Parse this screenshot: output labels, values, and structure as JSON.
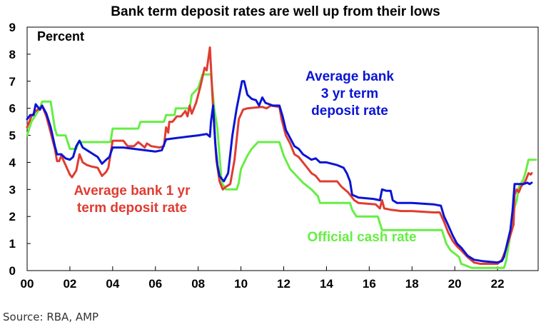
{
  "chart_data": {
    "type": "line",
    "title": "Bank term deposit rates are well up from their lows",
    "unit_label": "Percent",
    "source": "Source: RBA, AMP",
    "xlim": [
      2000,
      2023.9
    ],
    "ylim": [
      0,
      9
    ],
    "x_ticks": [
      {
        "value": 2000,
        "label": "00"
      },
      {
        "value": 2002,
        "label": "02"
      },
      {
        "value": 2004,
        "label": "04"
      },
      {
        "value": 2006,
        "label": "06"
      },
      {
        "value": 2008,
        "label": "08"
      },
      {
        "value": 2010,
        "label": "10"
      },
      {
        "value": 2012,
        "label": "12"
      },
      {
        "value": 2014,
        "label": "14"
      },
      {
        "value": 2016,
        "label": "16"
      },
      {
        "value": 2018,
        "label": "18"
      },
      {
        "value": 2020,
        "label": "20"
      },
      {
        "value": 2022,
        "label": "22"
      }
    ],
    "y_ticks": [
      0,
      1,
      2,
      3,
      4,
      5,
      6,
      7,
      8,
      9
    ],
    "series": [
      {
        "name": "Official cash rate",
        "color": "#66ee44",
        "label_lines": [
          "Official cash rate"
        ],
        "points": [
          [
            2000.0,
            5.0
          ],
          [
            2000.2,
            5.5
          ],
          [
            2000.4,
            5.75
          ],
          [
            2000.6,
            6.0
          ],
          [
            2000.7,
            6.25
          ],
          [
            2001.1,
            6.25
          ],
          [
            2001.2,
            5.75
          ],
          [
            2001.3,
            5.25
          ],
          [
            2001.4,
            5.0
          ],
          [
            2001.8,
            5.0
          ],
          [
            2001.9,
            4.75
          ],
          [
            2002.0,
            4.5
          ],
          [
            2002.3,
            4.5
          ],
          [
            2002.4,
            4.75
          ],
          [
            2003.9,
            4.75
          ],
          [
            2003.95,
            5.0
          ],
          [
            2004.0,
            5.25
          ],
          [
            2005.2,
            5.25
          ],
          [
            2005.3,
            5.5
          ],
          [
            2006.4,
            5.5
          ],
          [
            2006.5,
            5.75
          ],
          [
            2006.9,
            5.75
          ],
          [
            2006.95,
            6.0
          ],
          [
            2007.6,
            6.0
          ],
          [
            2007.7,
            6.5
          ],
          [
            2008.0,
            6.75
          ],
          [
            2008.2,
            7.25
          ],
          [
            2008.6,
            7.25
          ],
          [
            2008.75,
            6.0
          ],
          [
            2008.9,
            5.25
          ],
          [
            2009.0,
            4.25
          ],
          [
            2009.1,
            3.25
          ],
          [
            2009.3,
            3.0
          ],
          [
            2009.8,
            3.0
          ],
          [
            2009.9,
            3.25
          ],
          [
            2010.0,
            3.75
          ],
          [
            2010.3,
            4.25
          ],
          [
            2010.5,
            4.5
          ],
          [
            2010.8,
            4.75
          ],
          [
            2011.8,
            4.75
          ],
          [
            2011.9,
            4.5
          ],
          [
            2012.0,
            4.25
          ],
          [
            2012.3,
            3.75
          ],
          [
            2012.6,
            3.5
          ],
          [
            2012.9,
            3.25
          ],
          [
            2013.3,
            3.0
          ],
          [
            2013.6,
            2.75
          ],
          [
            2013.7,
            2.5
          ],
          [
            2015.1,
            2.5
          ],
          [
            2015.2,
            2.25
          ],
          [
            2015.4,
            2.0
          ],
          [
            2016.4,
            2.0
          ],
          [
            2016.5,
            1.75
          ],
          [
            2016.6,
            1.5
          ],
          [
            2019.4,
            1.5
          ],
          [
            2019.5,
            1.25
          ],
          [
            2019.6,
            1.0
          ],
          [
            2019.8,
            0.75
          ],
          [
            2020.2,
            0.5
          ],
          [
            2020.3,
            0.25
          ],
          [
            2020.8,
            0.1
          ],
          [
            2022.3,
            0.1
          ],
          [
            2022.4,
            0.35
          ],
          [
            2022.5,
            0.85
          ],
          [
            2022.6,
            1.35
          ],
          [
            2022.7,
            1.85
          ],
          [
            2022.8,
            2.35
          ],
          [
            2022.9,
            2.6
          ],
          [
            2023.0,
            3.1
          ],
          [
            2023.2,
            3.35
          ],
          [
            2023.3,
            3.6
          ],
          [
            2023.45,
            4.1
          ],
          [
            2023.8,
            4.1
          ]
        ]
      },
      {
        "name": "Average bank 1 yr term deposit rate",
        "color": "#e03c31",
        "label_lines": [
          "Average bank 1 yr",
          "term deposit rate"
        ],
        "points": [
          [
            2000.0,
            5.3
          ],
          [
            2000.2,
            5.7
          ],
          [
            2000.4,
            5.9
          ],
          [
            2000.6,
            6.0
          ],
          [
            2000.7,
            6.1
          ],
          [
            2000.9,
            5.7
          ],
          [
            2001.1,
            5.1
          ],
          [
            2001.3,
            4.5
          ],
          [
            2001.4,
            4.05
          ],
          [
            2001.5,
            4.05
          ],
          [
            2001.6,
            4.25
          ],
          [
            2001.8,
            3.9
          ],
          [
            2002.0,
            3.55
          ],
          [
            2002.1,
            3.45
          ],
          [
            2002.3,
            3.7
          ],
          [
            2002.45,
            4.3
          ],
          [
            2002.6,
            4.0
          ],
          [
            2002.8,
            3.9
          ],
          [
            2003.0,
            3.85
          ],
          [
            2003.3,
            3.8
          ],
          [
            2003.5,
            3.5
          ],
          [
            2003.7,
            3.65
          ],
          [
            2003.8,
            3.8
          ],
          [
            2004.0,
            4.8
          ],
          [
            2004.5,
            4.8
          ],
          [
            2004.7,
            4.6
          ],
          [
            2005.0,
            4.6
          ],
          [
            2005.2,
            4.75
          ],
          [
            2005.5,
            4.55
          ],
          [
            2005.6,
            4.7
          ],
          [
            2005.8,
            4.6
          ],
          [
            2006.2,
            4.55
          ],
          [
            2006.4,
            4.6
          ],
          [
            2006.5,
            5.3
          ],
          [
            2006.6,
            5.1
          ],
          [
            2006.65,
            5.5
          ],
          [
            2006.8,
            5.5
          ],
          [
            2006.9,
            5.6
          ],
          [
            2007.0,
            5.7
          ],
          [
            2007.2,
            5.7
          ],
          [
            2007.4,
            5.9
          ],
          [
            2007.5,
            5.7
          ],
          [
            2007.6,
            6.1
          ],
          [
            2007.7,
            5.8
          ],
          [
            2007.9,
            6.2
          ],
          [
            2008.1,
            6.8
          ],
          [
            2008.3,
            7.5
          ],
          [
            2008.4,
            7.4
          ],
          [
            2008.55,
            8.25
          ],
          [
            2008.6,
            7.5
          ],
          [
            2008.7,
            6.0
          ],
          [
            2008.85,
            4.1
          ],
          [
            2009.0,
            3.3
          ],
          [
            2009.15,
            3.0
          ],
          [
            2009.3,
            3.1
          ],
          [
            2009.5,
            3.2
          ],
          [
            2009.7,
            4.1
          ],
          [
            2009.9,
            5.6
          ],
          [
            2010.1,
            5.95
          ],
          [
            2010.3,
            6.0
          ],
          [
            2011.0,
            6.05
          ],
          [
            2011.2,
            6.0
          ],
          [
            2011.4,
            6.1
          ],
          [
            2011.8,
            6.05
          ],
          [
            2011.9,
            5.6
          ],
          [
            2012.1,
            5.0
          ],
          [
            2012.3,
            4.7
          ],
          [
            2012.5,
            4.3
          ],
          [
            2012.7,
            4.2
          ],
          [
            2012.9,
            4.0
          ],
          [
            2013.1,
            3.8
          ],
          [
            2013.3,
            3.6
          ],
          [
            2013.5,
            3.5
          ],
          [
            2013.7,
            3.3
          ],
          [
            2014.5,
            3.3
          ],
          [
            2014.7,
            3.1
          ],
          [
            2015.0,
            2.9
          ],
          [
            2015.3,
            2.6
          ],
          [
            2015.5,
            2.5
          ],
          [
            2016.3,
            2.45
          ],
          [
            2016.5,
            2.3
          ],
          [
            2016.6,
            2.6
          ],
          [
            2016.7,
            2.3
          ],
          [
            2017.0,
            2.25
          ],
          [
            2017.5,
            2.2
          ],
          [
            2018.0,
            2.2
          ],
          [
            2019.0,
            2.15
          ],
          [
            2019.3,
            2.15
          ],
          [
            2019.5,
            1.8
          ],
          [
            2019.7,
            1.4
          ],
          [
            2019.9,
            1.1
          ],
          [
            2020.1,
            0.9
          ],
          [
            2020.3,
            0.75
          ],
          [
            2020.6,
            0.5
          ],
          [
            2020.9,
            0.3
          ],
          [
            2021.2,
            0.25
          ],
          [
            2022.0,
            0.25
          ],
          [
            2022.2,
            0.4
          ],
          [
            2022.4,
            0.8
          ],
          [
            2022.6,
            1.3
          ],
          [
            2022.75,
            1.7
          ],
          [
            2022.8,
            2.8
          ],
          [
            2022.9,
            3.0
          ],
          [
            2023.0,
            2.9
          ],
          [
            2023.1,
            3.1
          ],
          [
            2023.3,
            3.3
          ],
          [
            2023.45,
            3.6
          ],
          [
            2023.55,
            3.55
          ],
          [
            2023.6,
            3.6
          ]
        ]
      },
      {
        "name": "Average bank 3 yr term deposit rate",
        "color": "#0a14d4",
        "label_lines": [
          "Average bank",
          "3 yr term",
          "deposit rate"
        ],
        "points": [
          [
            2000.0,
            5.6
          ],
          [
            2000.15,
            5.75
          ],
          [
            2000.3,
            5.75
          ],
          [
            2000.4,
            6.15
          ],
          [
            2000.5,
            6.05
          ],
          [
            2000.6,
            5.95
          ],
          [
            2000.7,
            6.1
          ],
          [
            2000.9,
            5.8
          ],
          [
            2001.1,
            5.3
          ],
          [
            2001.3,
            4.6
          ],
          [
            2001.4,
            4.3
          ],
          [
            2001.6,
            4.3
          ],
          [
            2001.8,
            4.15
          ],
          [
            2002.0,
            4.1
          ],
          [
            2002.15,
            4.2
          ],
          [
            2002.3,
            4.6
          ],
          [
            2002.45,
            4.8
          ],
          [
            2002.6,
            4.55
          ],
          [
            2002.9,
            4.4
          ],
          [
            2003.1,
            4.3
          ],
          [
            2003.3,
            4.2
          ],
          [
            2003.5,
            3.95
          ],
          [
            2003.7,
            4.1
          ],
          [
            2003.85,
            4.2
          ],
          [
            2004.0,
            4.55
          ],
          [
            2004.5,
            4.55
          ],
          [
            2005.0,
            4.5
          ],
          [
            2005.5,
            4.45
          ],
          [
            2006.0,
            4.4
          ],
          [
            2006.3,
            4.45
          ],
          [
            2006.5,
            4.85
          ],
          [
            2007.0,
            4.9
          ],
          [
            2007.5,
            4.95
          ],
          [
            2008.0,
            5.0
          ],
          [
            2008.4,
            5.05
          ],
          [
            2008.55,
            4.95
          ],
          [
            2008.6,
            5.5
          ],
          [
            2008.7,
            6.1
          ],
          [
            2008.8,
            4.7
          ],
          [
            2008.9,
            3.9
          ],
          [
            2009.0,
            3.5
          ],
          [
            2009.2,
            3.3
          ],
          [
            2009.4,
            3.6
          ],
          [
            2009.6,
            5.0
          ],
          [
            2009.8,
            6.0
          ],
          [
            2009.95,
            6.6
          ],
          [
            2010.05,
            7.0
          ],
          [
            2010.15,
            7.0
          ],
          [
            2010.3,
            6.5
          ],
          [
            2010.5,
            6.35
          ],
          [
            2010.7,
            6.3
          ],
          [
            2010.85,
            6.1
          ],
          [
            2011.0,
            6.4
          ],
          [
            2011.15,
            6.2
          ],
          [
            2011.5,
            6.1
          ],
          [
            2011.8,
            6.1
          ],
          [
            2011.95,
            5.7
          ],
          [
            2012.1,
            5.2
          ],
          [
            2012.3,
            4.9
          ],
          [
            2012.5,
            4.6
          ],
          [
            2012.7,
            4.5
          ],
          [
            2012.9,
            4.3
          ],
          [
            2013.1,
            4.2
          ],
          [
            2013.3,
            4.1
          ],
          [
            2013.5,
            4.15
          ],
          [
            2013.7,
            4.0
          ],
          [
            2014.0,
            4.0
          ],
          [
            2014.5,
            3.9
          ],
          [
            2014.8,
            3.8
          ],
          [
            2014.95,
            3.6
          ],
          [
            2015.1,
            3.3
          ],
          [
            2015.2,
            2.8
          ],
          [
            2015.35,
            2.75
          ],
          [
            2015.5,
            2.7
          ],
          [
            2016.2,
            2.65
          ],
          [
            2016.5,
            2.6
          ],
          [
            2016.6,
            3.0
          ],
          [
            2016.8,
            2.95
          ],
          [
            2017.0,
            2.95
          ],
          [
            2017.1,
            2.6
          ],
          [
            2017.3,
            2.5
          ],
          [
            2018.0,
            2.5
          ],
          [
            2019.0,
            2.45
          ],
          [
            2019.35,
            2.4
          ],
          [
            2019.5,
            2.0
          ],
          [
            2019.65,
            1.75
          ],
          [
            2019.9,
            1.3
          ],
          [
            2020.1,
            1.0
          ],
          [
            2020.3,
            0.85
          ],
          [
            2020.6,
            0.55
          ],
          [
            2020.9,
            0.4
          ],
          [
            2021.3,
            0.35
          ],
          [
            2022.0,
            0.3
          ],
          [
            2022.2,
            0.35
          ],
          [
            2022.3,
            0.5
          ],
          [
            2022.45,
            1.0
          ],
          [
            2022.6,
            1.5
          ],
          [
            2022.7,
            2.2
          ],
          [
            2022.8,
            3.2
          ],
          [
            2023.0,
            3.2
          ],
          [
            2023.2,
            3.2
          ],
          [
            2023.4,
            3.25
          ],
          [
            2023.5,
            3.2
          ],
          [
            2023.6,
            3.25
          ]
        ]
      }
    ]
  }
}
